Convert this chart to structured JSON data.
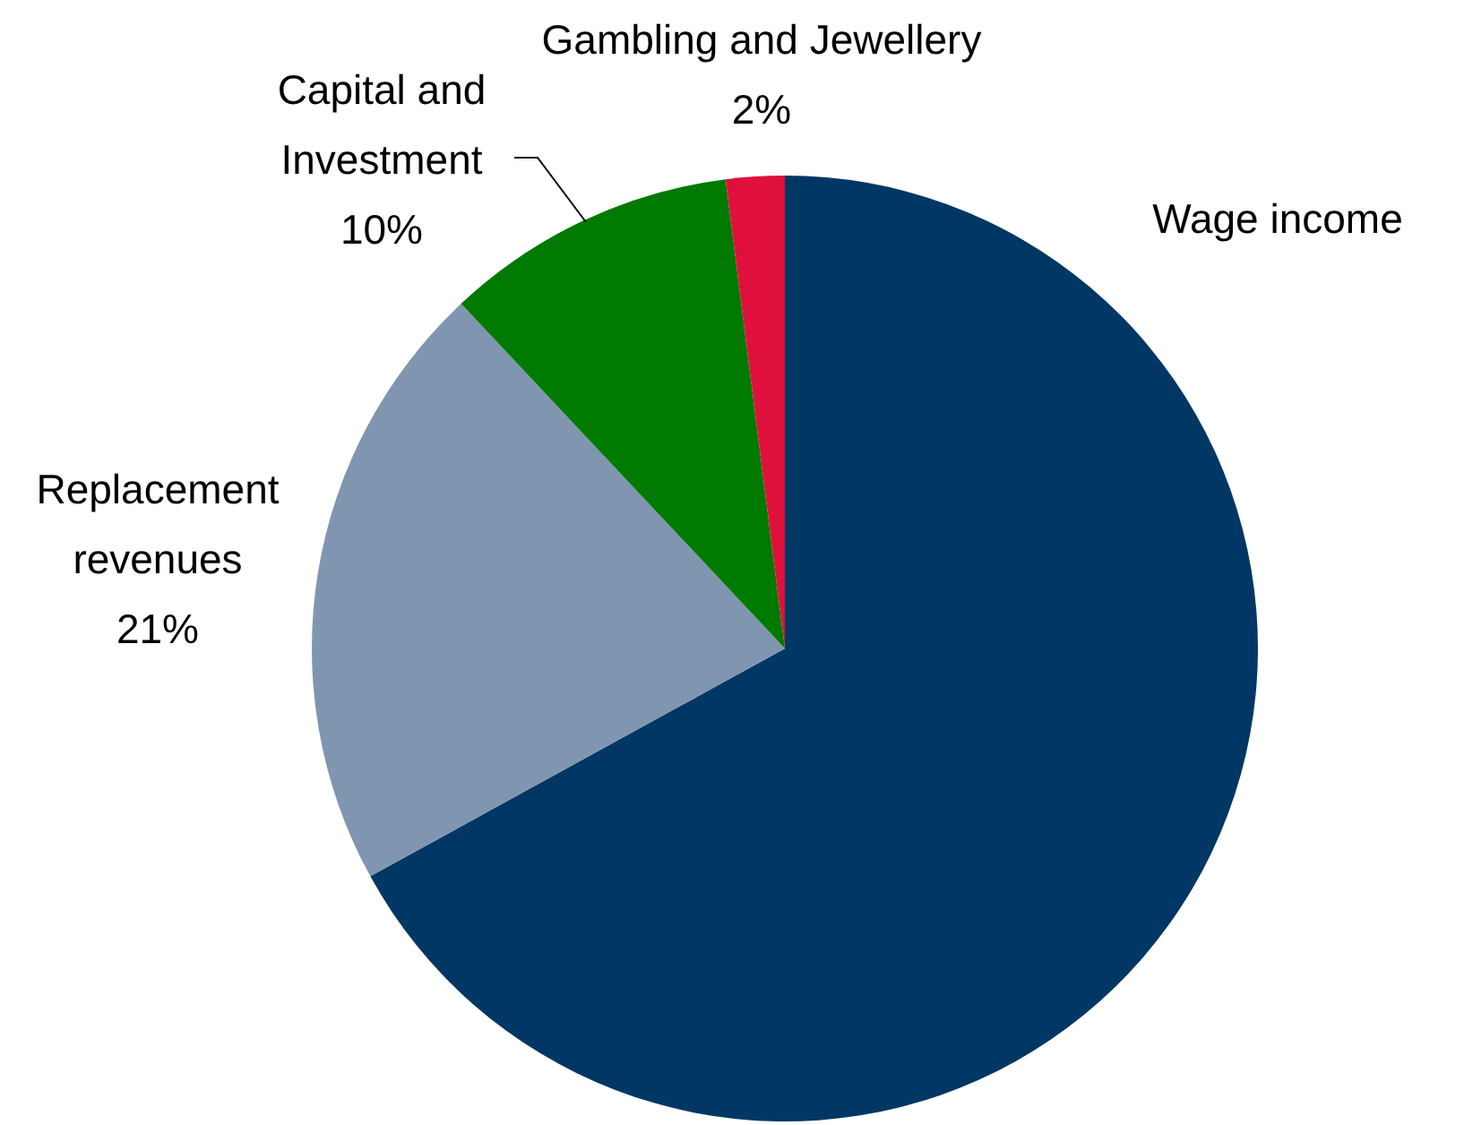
{
  "chart_data": {
    "type": "pie",
    "categories": [
      "Wage income",
      "Replacement revenues",
      "Capital and Investment",
      "Gambling and Jewellery"
    ],
    "values": [
      67,
      21,
      10,
      2
    ],
    "colors": [
      "#003764",
      "#8096b0",
      "#007a00",
      "#e0103c"
    ],
    "value_labels": [
      null,
      "21%",
      "10%",
      "2%"
    ],
    "legend": false
  }
}
